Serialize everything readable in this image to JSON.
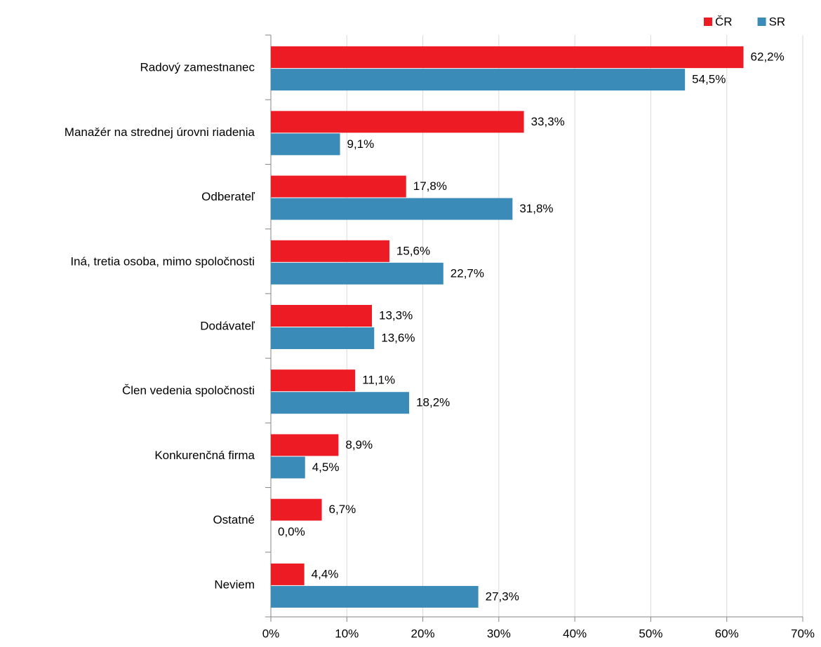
{
  "chart_data": {
    "type": "bar",
    "orientation": "horizontal",
    "categories": [
      "Radový zamestnanec",
      "Manažér na strednej úrovni riadenia",
      "Odberateľ",
      "Iná, tretia osoba, mimo spoločnosti",
      "Dodávateľ",
      "Člen vedenia spoločnosti",
      "Konkurenčná firma",
      "Ostatné",
      "Neviem"
    ],
    "series": [
      {
        "name": "ČR",
        "color": "#ed1c24",
        "values": [
          62.2,
          33.3,
          17.8,
          15.6,
          13.3,
          11.1,
          8.9,
          6.7,
          4.4
        ],
        "value_labels": [
          "62,2%",
          "33,3%",
          "17,8%",
          "15,6%",
          "13,3%",
          "11,1%",
          "8,9%",
          "6,7%",
          "4,4%"
        ]
      },
      {
        "name": "SR",
        "color": "#3a8bb8",
        "values": [
          54.5,
          9.1,
          31.8,
          22.7,
          13.6,
          18.2,
          4.5,
          0.0,
          27.3
        ],
        "value_labels": [
          "54,5%",
          "9,1%",
          "31,8%",
          "22,7%",
          "13,6%",
          "18,2%",
          "4,5%",
          "0,0%",
          "27,3%"
        ]
      }
    ],
    "xlim": [
      0,
      70
    ],
    "xticks": [
      {
        "value": 0,
        "label": "0%"
      },
      {
        "value": 10,
        "label": "10%"
      },
      {
        "value": 20,
        "label": "20%"
      },
      {
        "value": 30,
        "label": "30%"
      },
      {
        "value": 40,
        "label": "40%"
      },
      {
        "value": 50,
        "label": "50%"
      },
      {
        "value": 60,
        "label": "60%"
      },
      {
        "value": 70,
        "label": "70%"
      }
    ],
    "grid": true,
    "legend": "top-right"
  }
}
